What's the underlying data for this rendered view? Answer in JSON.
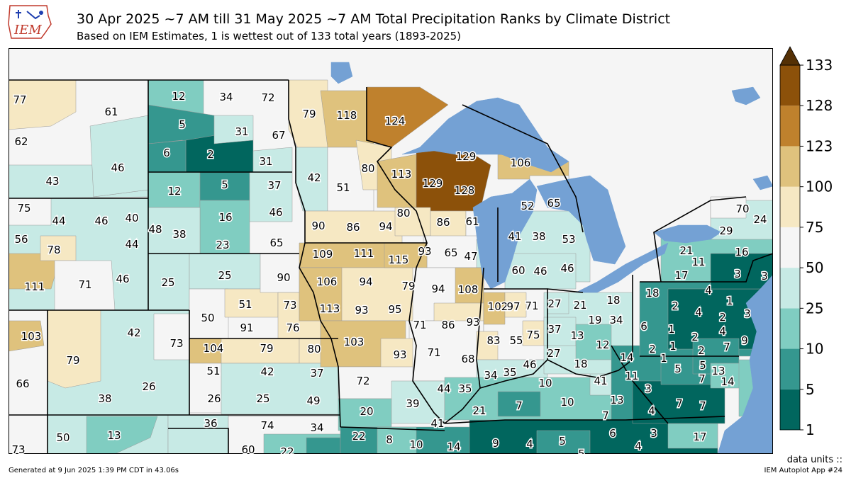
{
  "header": {
    "title": "30 Apr 2025 ~7 AM till 31 May 2025 ~7 AM Total Precipitation Ranks by Climate District",
    "subtitle": "Based on IEM Estimates, 1 is wettest out of 133 total years (1893-2025)",
    "logo_text": "IEM"
  },
  "colors": {
    "water": "#74a1d4",
    "border": "#000000"
  },
  "legend": {
    "ticks": [
      "1",
      "5",
      "10",
      "25",
      "50",
      "75",
      "100",
      "123",
      "128",
      "133"
    ],
    "colors": [
      "#01665e",
      "#35978f",
      "#80cdc1",
      "#c7eae5",
      "#f5f5f5",
      "#f6e8c3",
      "#dfc27d",
      "#bf812d",
      "#8c510a",
      "#543005"
    ],
    "units_label": "data units ::"
  },
  "districts": [
    {
      "v": "77"
    },
    {
      "v": "61"
    },
    {
      "v": "62"
    },
    {
      "v": "46"
    },
    {
      "v": "43"
    },
    {
      "v": "12"
    },
    {
      "v": "34"
    },
    {
      "v": "72"
    },
    {
      "v": "5"
    },
    {
      "v": "31"
    },
    {
      "v": "67"
    },
    {
      "v": "6"
    },
    {
      "v": "2"
    },
    {
      "v": "31"
    },
    {
      "v": "12"
    },
    {
      "v": "5"
    },
    {
      "v": "37"
    },
    {
      "v": "16"
    },
    {
      "v": "46"
    },
    {
      "v": "23"
    },
    {
      "v": "65"
    },
    {
      "v": "48"
    },
    {
      "v": "38"
    },
    {
      "v": "75"
    },
    {
      "v": "44"
    },
    {
      "v": "46"
    },
    {
      "v": "40"
    },
    {
      "v": "56"
    },
    {
      "v": "78"
    },
    {
      "v": "44"
    },
    {
      "v": "111"
    },
    {
      "v": "71"
    },
    {
      "v": "46"
    },
    {
      "v": "25"
    },
    {
      "v": "25"
    },
    {
      "v": "90"
    },
    {
      "v": "51"
    },
    {
      "v": "73"
    },
    {
      "v": "50"
    },
    {
      "v": "91"
    },
    {
      "v": "76"
    },
    {
      "v": "103"
    },
    {
      "v": "42"
    },
    {
      "v": "73"
    },
    {
      "v": "79"
    },
    {
      "v": "66"
    },
    {
      "v": "26"
    },
    {
      "v": "38"
    },
    {
      "v": "104"
    },
    {
      "v": "79"
    },
    {
      "v": "80"
    },
    {
      "v": "51"
    },
    {
      "v": "42"
    },
    {
      "v": "37"
    },
    {
      "v": "26"
    },
    {
      "v": "25"
    },
    {
      "v": "49"
    },
    {
      "v": "73"
    },
    {
      "v": "50"
    },
    {
      "v": "13"
    },
    {
      "v": "36"
    },
    {
      "v": "74"
    },
    {
      "v": "34"
    },
    {
      "v": "60"
    },
    {
      "v": "22"
    },
    {
      "v": "79"
    },
    {
      "v": "118"
    },
    {
      "v": "124"
    },
    {
      "v": "42"
    },
    {
      "v": "80"
    },
    {
      "v": "51"
    },
    {
      "v": "113"
    },
    {
      "v": "129"
    },
    {
      "v": "129"
    },
    {
      "v": "128"
    },
    {
      "v": "80"
    },
    {
      "v": "90"
    },
    {
      "v": "86"
    },
    {
      "v": "94"
    },
    {
      "v": "86"
    },
    {
      "v": "61"
    },
    {
      "v": "106"
    },
    {
      "v": "109"
    },
    {
      "v": "111"
    },
    {
      "v": "115"
    },
    {
      "v": "93"
    },
    {
      "v": "65"
    },
    {
      "v": "47"
    },
    {
      "v": "106"
    },
    {
      "v": "94"
    },
    {
      "v": "79"
    },
    {
      "v": "113"
    },
    {
      "v": "93"
    },
    {
      "v": "95"
    },
    {
      "v": "94"
    },
    {
      "v": "108"
    },
    {
      "v": "52"
    },
    {
      "v": "65"
    },
    {
      "v": "41"
    },
    {
      "v": "38"
    },
    {
      "v": "53"
    },
    {
      "v": "60"
    },
    {
      "v": "46"
    },
    {
      "v": "46"
    },
    {
      "v": "102"
    },
    {
      "v": "97"
    },
    {
      "v": "71"
    },
    {
      "v": "71"
    },
    {
      "v": "86"
    },
    {
      "v": "93"
    },
    {
      "v": "103"
    },
    {
      "v": "93"
    },
    {
      "v": "83"
    },
    {
      "v": "55"
    },
    {
      "v": "75"
    },
    {
      "v": "71"
    },
    {
      "v": "68"
    },
    {
      "v": "72"
    },
    {
      "v": "46"
    },
    {
      "v": "34"
    },
    {
      "v": "35"
    },
    {
      "v": "44"
    },
    {
      "v": "35"
    },
    {
      "v": "20"
    },
    {
      "v": "39"
    },
    {
      "v": "41"
    },
    {
      "v": "22"
    },
    {
      "v": "8"
    },
    {
      "v": "10"
    },
    {
      "v": "14"
    },
    {
      "v": "9"
    },
    {
      "v": "4"
    },
    {
      "v": "5"
    },
    {
      "v": "5"
    },
    {
      "v": "27"
    },
    {
      "v": "21"
    },
    {
      "v": "18"
    },
    {
      "v": "37"
    },
    {
      "v": "13"
    },
    {
      "v": "19"
    },
    {
      "v": "34"
    },
    {
      "v": "12"
    },
    {
      "v": "27"
    },
    {
      "v": "18"
    },
    {
      "v": "10"
    },
    {
      "v": "10"
    },
    {
      "v": "7"
    },
    {
      "v": "21"
    },
    {
      "v": "41"
    },
    {
      "v": "13"
    },
    {
      "v": "7"
    },
    {
      "v": "6"
    },
    {
      "v": "3"
    },
    {
      "v": "4"
    },
    {
      "v": "17"
    },
    {
      "v": "70"
    },
    {
      "v": "24"
    },
    {
      "v": "29"
    },
    {
      "v": "21"
    },
    {
      "v": "16"
    },
    {
      "v": "11"
    },
    {
      "v": "17"
    },
    {
      "v": "3"
    },
    {
      "v": "3"
    },
    {
      "v": "18"
    },
    {
      "v": "4"
    },
    {
      "v": "1"
    },
    {
      "v": "2"
    },
    {
      "v": "4"
    },
    {
      "v": "2"
    },
    {
      "v": "3"
    },
    {
      "v": "6"
    },
    {
      "v": "1"
    },
    {
      "v": "2"
    },
    {
      "v": "4"
    },
    {
      "v": "9"
    },
    {
      "v": "2"
    },
    {
      "v": "1"
    },
    {
      "v": "2"
    },
    {
      "v": "7"
    },
    {
      "v": "14"
    },
    {
      "v": "11"
    },
    {
      "v": "1"
    },
    {
      "v": "5"
    },
    {
      "v": "5"
    },
    {
      "v": "13"
    },
    {
      "v": "3"
    },
    {
      "v": "7"
    },
    {
      "v": "14"
    },
    {
      "v": "4"
    },
    {
      "v": "7"
    },
    {
      "v": "7"
    }
  ],
  "footer": {
    "generated": "Generated at 9 Jun 2025 1:39 PM CDT in 43.06s",
    "app": "IEM Autoplot App #24"
  }
}
